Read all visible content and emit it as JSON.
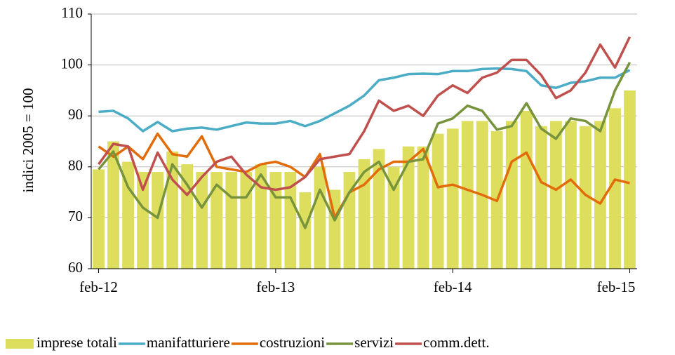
{
  "chart_data": {
    "type": "bar",
    "ylabel": "indici 2005 = 100",
    "categories": [
      "feb-12",
      null,
      null,
      null,
      null,
      null,
      null,
      null,
      null,
      null,
      null,
      null,
      "feb-13",
      null,
      null,
      null,
      null,
      null,
      null,
      null,
      null,
      null,
      null,
      null,
      "feb-14",
      null,
      null,
      null,
      null,
      null,
      null,
      null,
      null,
      null,
      null,
      null,
      "feb-15"
    ],
    "ylim": [
      60,
      110
    ],
    "yticks": [
      60,
      70,
      80,
      90,
      100,
      110
    ],
    "grid": true,
    "legend": "bottom",
    "series": [
      {
        "name": "imprese totali",
        "type": "bar",
        "color": "#dede5e",
        "values": [
          79.5,
          85,
          81,
          79,
          79,
          83,
          80.5,
          79,
          79,
          79,
          79,
          80.5,
          79,
          79,
          75,
          80,
          75.5,
          79,
          81.5,
          83.5,
          80,
          84,
          84,
          86.5,
          87.5,
          89,
          89,
          87,
          89,
          91,
          88,
          89,
          89,
          88,
          89,
          91.5,
          95
        ]
      },
      {
        "name": "manifatturiere",
        "type": "line",
        "color": "#4bacc6",
        "values": [
          90.8,
          91,
          89.5,
          87,
          88.8,
          87,
          87.5,
          87.7,
          87.3,
          88,
          88.7,
          88.5,
          88.5,
          89,
          88,
          89,
          90.5,
          92,
          94,
          97,
          97.5,
          98.2,
          98.3,
          98.2,
          98.8,
          98.8,
          99.2,
          99.3,
          99.2,
          98.8,
          96,
          95.5,
          96.5,
          96.8,
          97.5,
          97.5,
          99
        ]
      },
      {
        "name": "costruzioni",
        "type": "line",
        "color": "#e36c0a",
        "values": [
          84,
          82,
          84,
          81.5,
          86.5,
          82.5,
          82,
          86,
          80,
          79.5,
          79,
          80.5,
          81,
          80,
          78,
          82.5,
          70,
          75,
          76.5,
          79.5,
          81,
          81,
          83.5,
          76,
          76.5,
          75.5,
          74.5,
          73.3,
          81,
          82.8,
          77,
          75.5,
          77.5,
          74.5,
          72.8,
          77.5,
          76.8
        ]
      },
      {
        "name": "servizi",
        "type": "line",
        "color": "#77933c",
        "values": [
          79.5,
          83,
          76,
          72,
          70,
          80.5,
          76.5,
          72,
          76.5,
          74,
          74,
          78.5,
          74,
          74,
          68,
          75.5,
          69.5,
          75,
          79,
          81,
          75.5,
          81,
          81.5,
          88.5,
          89.5,
          92,
          91,
          87.3,
          88,
          92.5,
          87.5,
          85.5,
          89.5,
          89,
          87,
          95,
          100.5
        ]
      },
      {
        "name": "comm.dett.",
        "type": "line",
        "color": "#c0504d",
        "values": [
          80.5,
          84.5,
          84,
          75.5,
          82.8,
          77.5,
          74.5,
          78,
          81,
          82,
          78.5,
          76,
          75.5,
          76,
          78,
          81.5,
          82,
          82.5,
          87,
          93,
          91,
          92,
          90,
          94,
          96,
          94.5,
          97.5,
          98.5,
          101,
          101,
          98,
          93.5,
          95,
          98.5,
          104,
          99.5,
          105.5
        ]
      }
    ]
  }
}
